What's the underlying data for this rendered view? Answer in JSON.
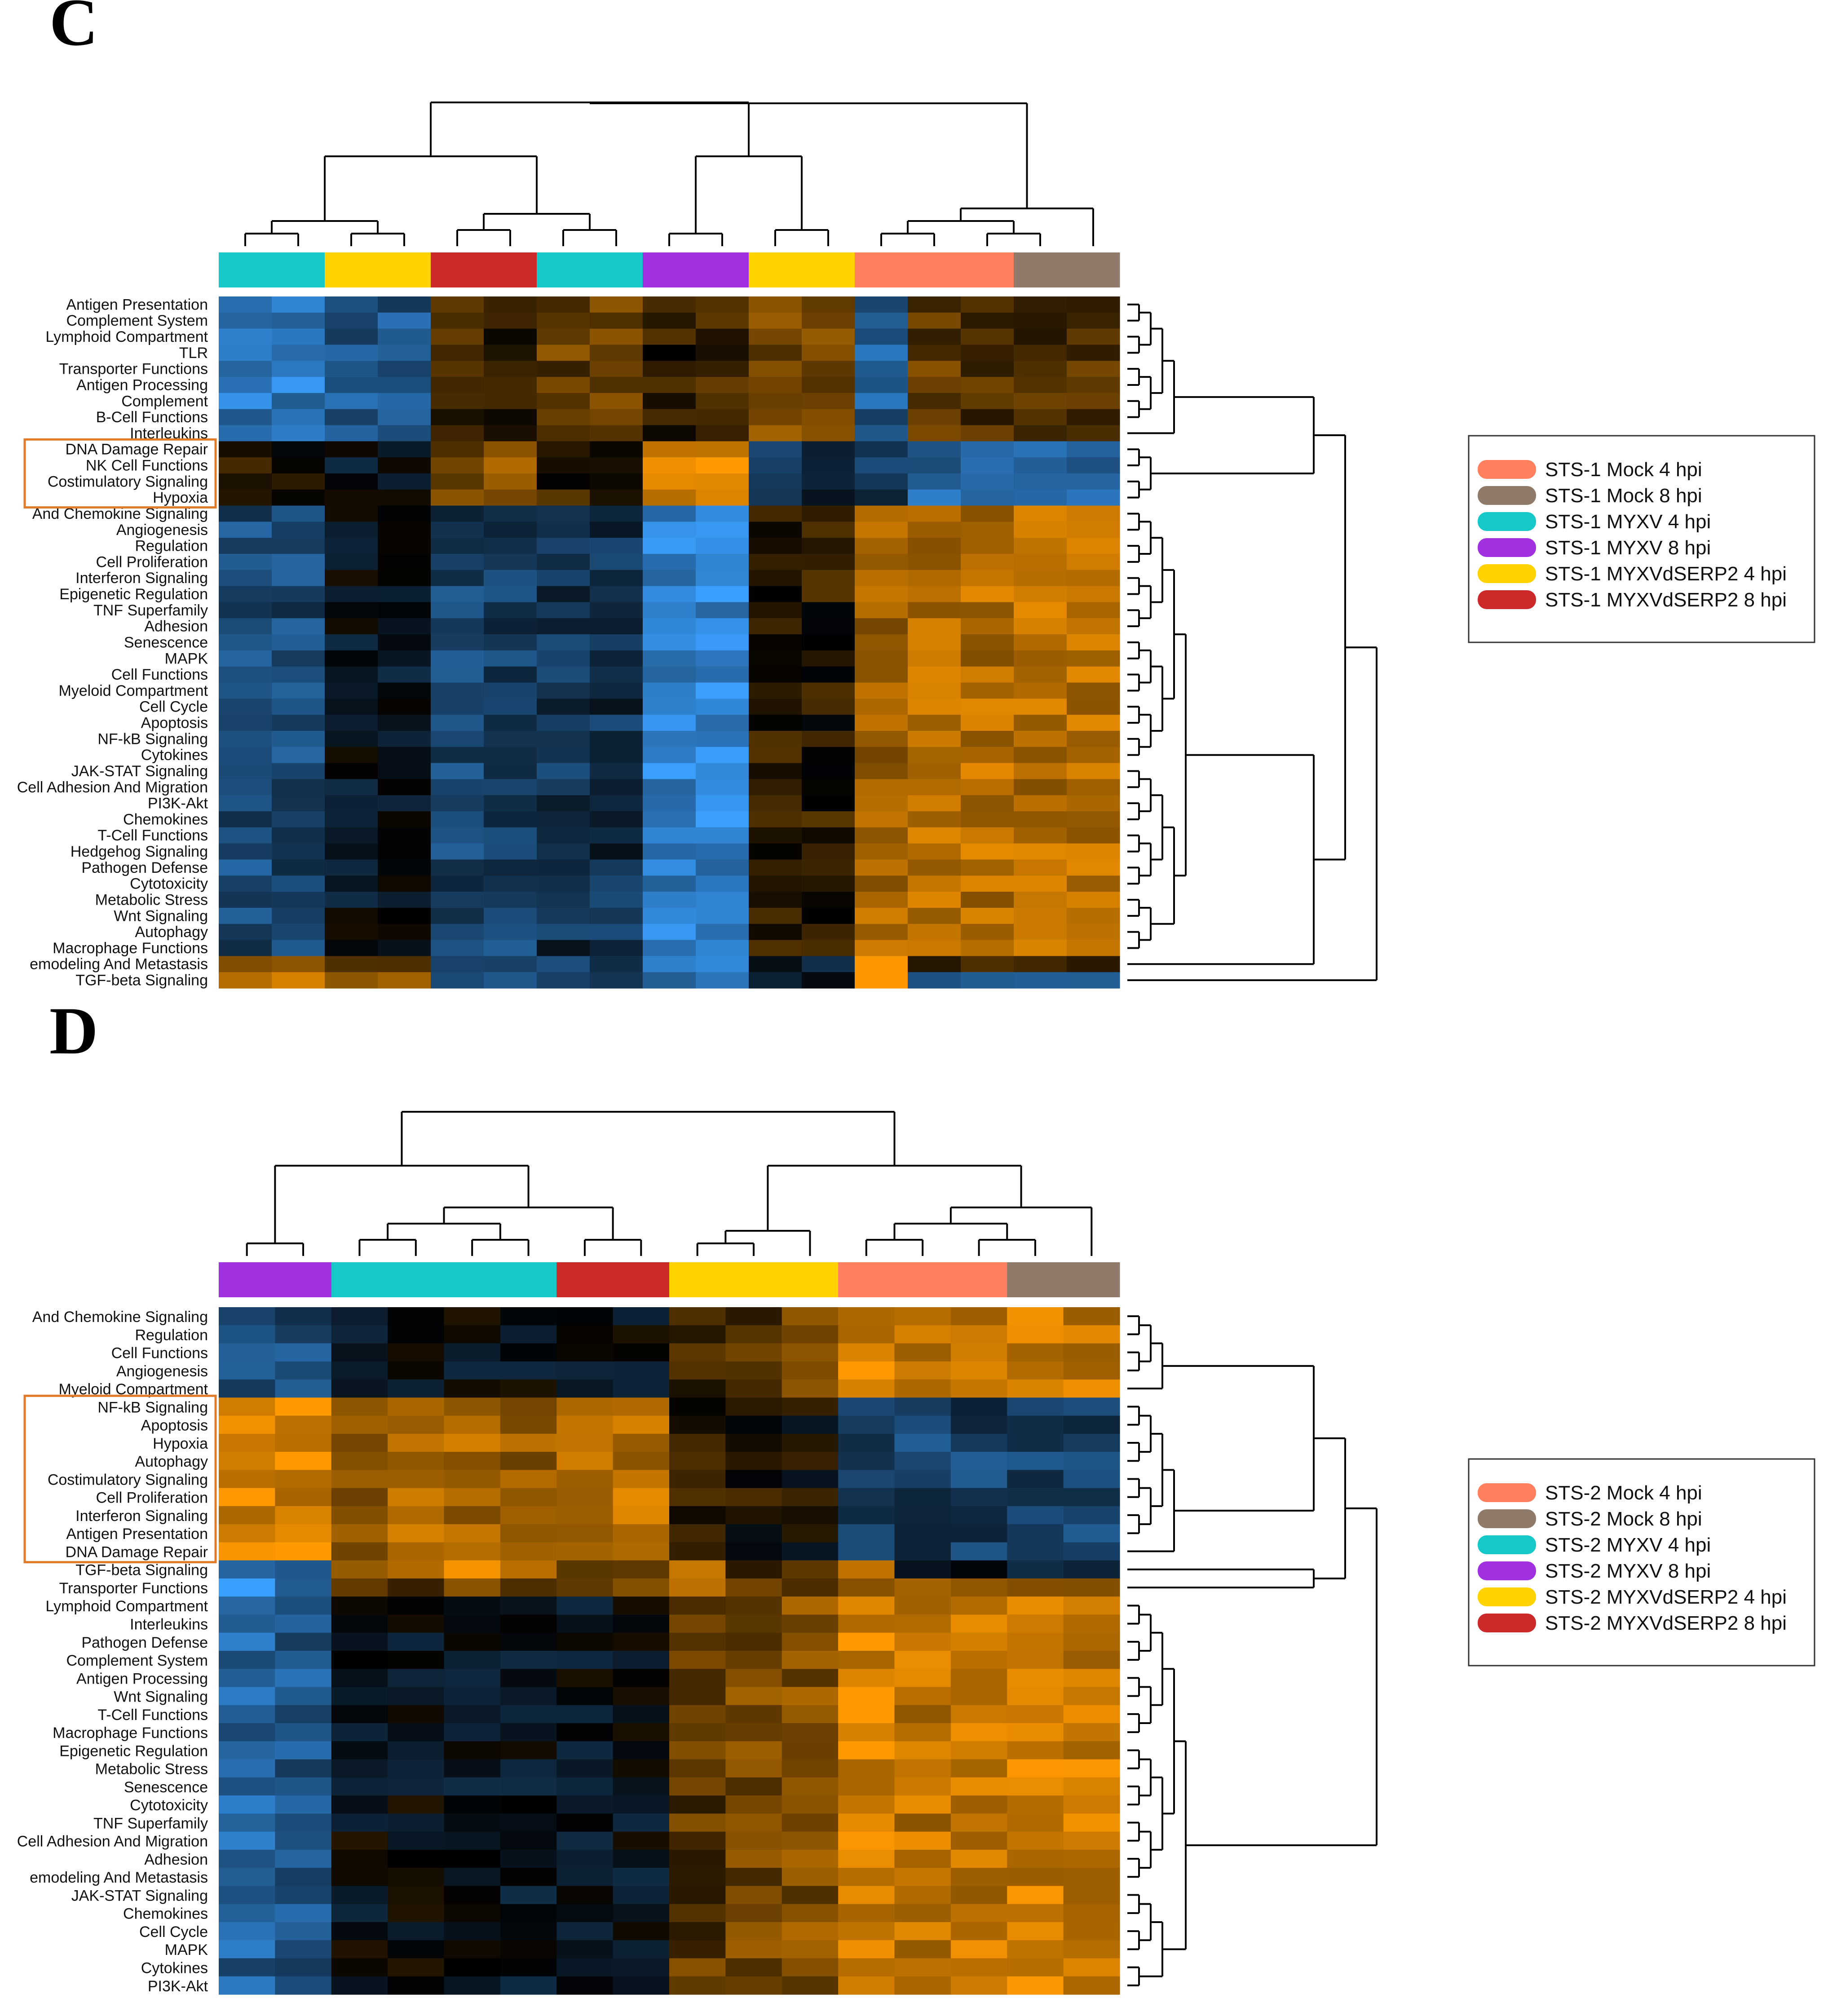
{
  "chart_data": [
    {
      "type": "heatmap",
      "panel_label": "C",
      "color_scale": {
        "low": "#3aa0ff",
        "mid": "#000000",
        "high": "#ff9900"
      },
      "column_groups": [
        {
          "color": "#16c8c8",
          "n": 2
        },
        {
          "color": "#ffd200",
          "n": 2
        },
        {
          "color": "#cc2a2a",
          "n": 2
        },
        {
          "color": "#16c8c8",
          "n": 2
        },
        {
          "color": "#a030e0",
          "n": 2
        },
        {
          "color": "#ffd200",
          "n": 2
        },
        {
          "color": "#ff7f5f",
          "n": 3
        },
        {
          "color": "#907b6b",
          "n": 2
        }
      ],
      "col_clusters": [
        {
          "lo": 0,
          "hi": 3,
          "style": "neg"
        },
        {
          "lo": 4,
          "hi": 7,
          "style": "neg"
        },
        {
          "lo": 8,
          "hi": 9,
          "style": "pos"
        },
        {
          "lo": 10,
          "hi": 11,
          "style": "weak"
        },
        {
          "lo": 12,
          "hi": 16,
          "style": "pos"
        }
      ],
      "rows": [
        "Antigen Presentation",
        "Complement System",
        "Lymphoid Compartment",
        "TLR",
        "Transporter Functions",
        "Antigen Processing",
        "Complement",
        "B-Cell Functions",
        "Interleukins",
        "DNA Damage Repair",
        "NK Cell Functions",
        "Costimulatory Signaling",
        "Hypoxia",
        "And Chemokine Signaling",
        "Angiogenesis",
        "Regulation",
        "Cell Proliferation",
        "Interferon Signaling",
        "Epigenetic Regulation",
        "TNF Superfamily",
        "Adhesion",
        "Senescence",
        "MAPK",
        "Cell Functions",
        "Myeloid Compartment",
        "Cell Cycle",
        "Apoptosis",
        "NF-kB Signaling",
        "Cytokines",
        "JAK-STAT Signaling",
        "Cell Adhesion And Migration",
        "PI3K-Akt",
        "Chemokines",
        "T-Cell Functions",
        "Hedgehog Signaling",
        "Pathogen Defense",
        "Cytotoxicity",
        "Metabolic Stress",
        "Wnt Signaling",
        "Autophagy",
        "Macrophage Functions",
        "emodeling And Metastasis",
        "TGF-beta Signaling"
      ],
      "row_blocks": [
        {
          "start": 0,
          "end": 8,
          "pattern": [
            -0.75,
            -0.75,
            -0.55,
            -0.55,
            0.3,
            0.15,
            0.4,
            0.4,
            0.2,
            0.2,
            0.45,
            0.45,
            -0.55,
            0.35,
            0.3,
            0.3,
            0.3
          ]
        },
        {
          "start": 9,
          "end": 12,
          "pattern": [
            0.1,
            0.1,
            -0.1,
            -0.1,
            0.5,
            0.5,
            0.2,
            0.2,
            0.9,
            0.9,
            -0.3,
            -0.3,
            -0.4,
            -0.6,
            -0.6,
            -0.6,
            -0.6
          ]
        },
        {
          "start": 13,
          "end": 40,
          "pattern": [
            -0.45,
            -0.45,
            -0.1,
            -0.1,
            -0.4,
            -0.4,
            -0.3,
            -0.3,
            -0.8,
            -0.8,
            0.15,
            0.15,
            0.65,
            0.7,
            0.7,
            0.7,
            0.7
          ]
        },
        {
          "start": 41,
          "end": 41,
          "pattern": [
            0.4,
            0.4,
            0.5,
            0.5,
            -0.4,
            -0.4,
            -0.3,
            -0.3,
            -0.7,
            -0.7,
            -0.2,
            -0.2,
            0.85,
            0.3,
            0.3,
            0.3,
            0.3
          ]
        },
        {
          "start": 42,
          "end": 42,
          "pattern": [
            0.75,
            0.75,
            0.75,
            0.75,
            -0.45,
            -0.45,
            -0.4,
            -0.4,
            -0.6,
            -0.6,
            -0.1,
            -0.1,
            0.95,
            -0.5,
            -0.5,
            -0.5,
            -0.5
          ]
        }
      ],
      "highlight_rows": [
        9,
        12
      ]
    },
    {
      "type": "heatmap",
      "panel_label": "D",
      "color_scale": {
        "low": "#3aa0ff",
        "mid": "#000000",
        "high": "#ff9900"
      },
      "column_groups": [
        {
          "color": "#a030e0",
          "n": 2
        },
        {
          "color": "#16c8c8",
          "n": 4
        },
        {
          "color": "#cc2a2a",
          "n": 2
        },
        {
          "color": "#ffd200",
          "n": 3
        },
        {
          "color": "#ff7f5f",
          "n": 3
        },
        {
          "color": "#907b6b",
          "n": 2
        }
      ],
      "col_clusters": [
        {
          "lo": 0,
          "hi": 1,
          "style": "neg"
        },
        {
          "lo": 2,
          "hi": 7,
          "style": "neg"
        },
        {
          "lo": 8,
          "hi": 10,
          "style": "weak"
        },
        {
          "lo": 11,
          "hi": 15,
          "style": "pos"
        }
      ],
      "rows": [
        "And Chemokine Signaling",
        "Regulation",
        "Cell Functions",
        "Angiogenesis",
        "Myeloid Compartment",
        "NF-kB Signaling",
        "Apoptosis",
        "Hypoxia",
        "Autophagy",
        "Costimulatory Signaling",
        "Cell Proliferation",
        "Interferon Signaling",
        "Antigen Presentation",
        "DNA Damage Repair",
        "TGF-beta Signaling",
        "Transporter Functions",
        "Lymphoid Compartment",
        "Interleukins",
        "Pathogen Defense",
        "Complement System",
        "Antigen Processing",
        "Wnt Signaling",
        "T-Cell Functions",
        "Macrophage Functions",
        "Epigenetic Regulation",
        "Metabolic Stress",
        "Senescence",
        "Cytotoxicity",
        "TNF Superfamily",
        "Cell Adhesion And Migration",
        "Adhesion",
        "emodeling And Metastasis",
        "JAK-STAT Signaling",
        "Chemokines",
        "Cell Cycle",
        "MAPK",
        "Cytokines",
        "PI3K-Akt"
      ],
      "row_blocks": [
        {
          "start": 0,
          "end": 4,
          "pattern": [
            -0.45,
            -0.45,
            -0.05,
            -0.05,
            -0.05,
            -0.05,
            -0.05,
            -0.05,
            0.3,
            0.35,
            0.4,
            0.85,
            0.8,
            0.8,
            0.8,
            0.8
          ]
        },
        {
          "start": 5,
          "end": 13,
          "pattern": [
            0.85,
            0.85,
            0.6,
            0.65,
            0.65,
            0.6,
            0.7,
            0.7,
            0.2,
            0.1,
            0.05,
            -0.35,
            -0.4,
            -0.4,
            -0.4,
            -0.4
          ]
        },
        {
          "start": 14,
          "end": 14,
          "pattern": [
            -0.7,
            -0.6,
            0.6,
            0.6,
            0.9,
            0.9,
            0.3,
            0.3,
            0.8,
            0.2,
            0.2,
            0.7,
            -0.1,
            -0.1,
            -0.1,
            -0.1
          ]
        },
        {
          "start": 15,
          "end": 15,
          "pattern": [
            -0.95,
            -0.7,
            0.4,
            0.4,
            0.5,
            0.5,
            0.35,
            0.35,
            0.6,
            0.45,
            0.4,
            0.6,
            0.5,
            0.5,
            0.5,
            0.5
          ]
        },
        {
          "start": 16,
          "end": 37,
          "pattern": [
            -0.6,
            -0.55,
            -0.05,
            -0.05,
            -0.1,
            -0.1,
            -0.08,
            -0.08,
            0.35,
            0.45,
            0.5,
            0.85,
            0.75,
            0.75,
            0.8,
            0.8
          ]
        }
      ],
      "highlight_rows": [
        5,
        13
      ]
    }
  ],
  "legend_c": {
    "entries": [
      {
        "label": "STS-1 Mock 4 hpi",
        "color": "#ff7f5f"
      },
      {
        "label": "STS-1 Mock 8 hpi",
        "color": "#907b6b"
      },
      {
        "label": "STS-1 MYXV 4 hpi",
        "color": "#16c8c8"
      },
      {
        "label": "STS-1 MYXV 8 hpi",
        "color": "#a030e0"
      },
      {
        "label": "STS-1 MYXVdSERP2 4 hpi",
        "color": "#ffd200"
      },
      {
        "label": "STS-1 MYXVdSERP2 8 hpi",
        "color": "#cc2a2a"
      }
    ]
  },
  "legend_d": {
    "entries": [
      {
        "label": "STS-2 Mock 4 hpi",
        "color": "#ff7f5f"
      },
      {
        "label": "STS-2 Mock 8 hpi",
        "color": "#907b6b"
      },
      {
        "label": "STS-2 MYXV 4 hpi",
        "color": "#16c8c8"
      },
      {
        "label": "STS-2 MYXV 8 hpi",
        "color": "#a030e0"
      },
      {
        "label": "STS-2 MYXVdSERP2 4 hpi",
        "color": "#ffd200"
      },
      {
        "label": "STS-2 MYXVdSERP2 8 hpi",
        "color": "#cc2a2a"
      }
    ]
  }
}
